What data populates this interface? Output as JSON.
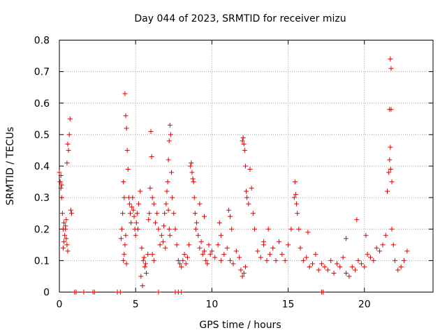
{
  "chart_data": {
    "type": "scatter",
    "title": "Day 044 of 2023, SRMTID for receiver mizu",
    "xlabel": "GPS time / hours",
    "ylabel": "SRMTID / TECUs",
    "xlim": [
      0,
      24.5
    ],
    "ylim": [
      0,
      0.8
    ],
    "x_ticks": [
      0,
      5,
      10,
      15,
      20
    ],
    "x_tick_labels": [
      "0",
      "5",
      "10",
      "15",
      "20"
    ],
    "y_ticks": [
      0,
      0.1,
      0.2,
      0.3,
      0.4,
      0.5,
      0.6,
      0.7,
      0.8
    ],
    "y_tick_labels": [
      "0",
      "0.1",
      "0.2",
      "0.3",
      "0.4",
      "0.5",
      "0.6",
      "0.7",
      "0.8"
    ],
    "grid": true,
    "marker": "+",
    "color": "#e00000",
    "series": [
      {
        "name": "SRMTID",
        "x": [
          0.0,
          0.05,
          0.1,
          0.15,
          0.2,
          0.25,
          0.3,
          0.35,
          0.4,
          0.45,
          0.5,
          0.55,
          0.6,
          0.65,
          0.7,
          0.75,
          0.8,
          0.4,
          0.45,
          0.5,
          0.55,
          0.25,
          0.3,
          0.1,
          0.15,
          1.0,
          1.1,
          1.6,
          2.2,
          2.3,
          3.8,
          4.0,
          6.5,
          7.6,
          7.8,
          8.0,
          17.2,
          17.3,
          4.05,
          4.1,
          4.15,
          4.2,
          4.25,
          4.3,
          4.35,
          4.4,
          4.45,
          4.5,
          4.55,
          4.6,
          4.65,
          4.7,
          4.75,
          4.8,
          4.85,
          4.9,
          4.95,
          5.0,
          5.05,
          5.1,
          5.15,
          4.2,
          4.25,
          4.3,
          4.35,
          4.4,
          5.2,
          5.3,
          5.4,
          5.5,
          5.6,
          5.7,
          5.8,
          5.35,
          5.45,
          5.55,
          5.65,
          5.85,
          5.9,
          5.95,
          6.0,
          6.05,
          6.1,
          6.2,
          6.3,
          6.4,
          6.5,
          6.6,
          6.7,
          6.8,
          6.9,
          6.85,
          6.95,
          6.1,
          6.2,
          7.0,
          7.05,
          7.1,
          7.15,
          7.2,
          7.25,
          7.3,
          7.35,
          7.4,
          7.5,
          7.6,
          7.7,
          7.8,
          7.9,
          7.15,
          7.2,
          7.25,
          8.0,
          8.1,
          8.2,
          8.3,
          8.4,
          8.5,
          8.6,
          8.65,
          8.7,
          8.75,
          8.8,
          8.85,
          8.9,
          8.95,
          9.0,
          9.1,
          9.2,
          9.3,
          9.4,
          9.5,
          9.6,
          9.7,
          9.8,
          9.9,
          10.0,
          10.2,
          10.4,
          10.6,
          10.8,
          11.0,
          11.2,
          11.4,
          11.6,
          11.8,
          11.9,
          12.0,
          12.05,
          12.1,
          12.15,
          12.2,
          12.25,
          12.3,
          12.4,
          12.5,
          12.6,
          12.7,
          12.8,
          12.0,
          12.1,
          12.2,
          13.0,
          13.2,
          13.4,
          13.6,
          13.8,
          14.0,
          14.2,
          14.4,
          14.6,
          14.8,
          15.0,
          15.2,
          15.4,
          15.45,
          15.5,
          15.55,
          15.6,
          15.7,
          15.8,
          16.0,
          16.2,
          16.4,
          16.6,
          16.8,
          17.0,
          17.2,
          17.4,
          17.6,
          17.8,
          18.0,
          18.2,
          18.4,
          18.6,
          18.8,
          19.0,
          19.2,
          19.4,
          19.6,
          19.8,
          20.0,
          20.2,
          20.4,
          20.6,
          20.8,
          21.0,
          21.2,
          21.4,
          21.5,
          21.6,
          21.65,
          21.7,
          21.75,
          21.8,
          21.9,
          22.0,
          22.2,
          22.4,
          22.6,
          22.8,
          21.7,
          21.75,
          21.65,
          21.8,
          21.72,
          11.1,
          11.2,
          11.3,
          10.5,
          10.6,
          13.4,
          13.7,
          9.2,
          9.5,
          16.3,
          18.8,
          19.5,
          20.1
        ],
        "y": [
          0.38,
          0.35,
          0.33,
          0.3,
          0.25,
          0.2,
          0.22,
          0.18,
          0.21,
          0.23,
          0.41,
          0.47,
          0.45,
          0.5,
          0.55,
          0.26,
          0.25,
          0.2,
          0.17,
          0.15,
          0.13,
          0.14,
          0.16,
          0.37,
          0.34,
          0.0,
          0.0,
          0.0,
          0.0,
          0.0,
          0.0,
          0.0,
          0.0,
          0.0,
          0.0,
          0.0,
          0.0,
          0.0,
          0.17,
          0.2,
          0.25,
          0.35,
          0.3,
          0.63,
          0.56,
          0.52,
          0.45,
          0.39,
          0.3,
          0.28,
          0.25,
          0.22,
          0.27,
          0.3,
          0.26,
          0.24,
          0.2,
          0.18,
          0.22,
          0.25,
          0.2,
          0.1,
          0.12,
          0.15,
          0.18,
          0.09,
          0.28,
          0.32,
          0.14,
          0.1,
          0.08,
          0.06,
          0.12,
          0.05,
          0.02,
          0.11,
          0.09,
          0.23,
          0.25,
          0.33,
          0.51,
          0.43,
          0.3,
          0.28,
          0.22,
          0.25,
          0.2,
          0.15,
          0.18,
          0.16,
          0.25,
          0.21,
          0.14,
          0.12,
          0.1,
          0.28,
          0.32,
          0.35,
          0.42,
          0.48,
          0.53,
          0.5,
          0.38,
          0.3,
          0.25,
          0.2,
          0.15,
          0.1,
          0.09,
          0.26,
          0.2,
          0.18,
          0.08,
          0.1,
          0.12,
          0.09,
          0.11,
          0.15,
          0.4,
          0.41,
          0.38,
          0.36,
          0.35,
          0.3,
          0.25,
          0.2,
          0.22,
          0.18,
          0.14,
          0.16,
          0.12,
          0.13,
          0.1,
          0.09,
          0.15,
          0.12,
          0.13,
          0.11,
          0.15,
          0.1,
          0.12,
          0.14,
          0.1,
          0.09,
          0.13,
          0.11,
          0.07,
          0.48,
          0.49,
          0.47,
          0.45,
          0.4,
          0.32,
          0.3,
          0.28,
          0.39,
          0.33,
          0.25,
          0.2,
          0.05,
          0.06,
          0.08,
          0.13,
          0.11,
          0.15,
          0.1,
          0.12,
          0.14,
          0.1,
          0.16,
          0.12,
          0.1,
          0.15,
          0.2,
          0.3,
          0.35,
          0.31,
          0.28,
          0.25,
          0.2,
          0.14,
          0.1,
          0.11,
          0.08,
          0.09,
          0.12,
          0.07,
          0.09,
          0.08,
          0.07,
          0.1,
          0.06,
          0.09,
          0.08,
          0.11,
          0.06,
          0.05,
          0.08,
          0.07,
          0.1,
          0.09,
          0.08,
          0.12,
          0.11,
          0.1,
          0.14,
          0.13,
          0.15,
          0.18,
          0.32,
          0.38,
          0.42,
          0.46,
          0.58,
          0.2,
          0.15,
          0.1,
          0.07,
          0.08,
          0.1,
          0.13,
          0.74,
          0.71,
          0.58,
          0.35,
          0.39,
          0.26,
          0.24,
          0.2,
          0.22,
          0.18,
          0.16,
          0.2,
          0.28,
          0.24,
          0.19,
          0.17,
          0.23,
          0.18
        ]
      }
    ]
  }
}
